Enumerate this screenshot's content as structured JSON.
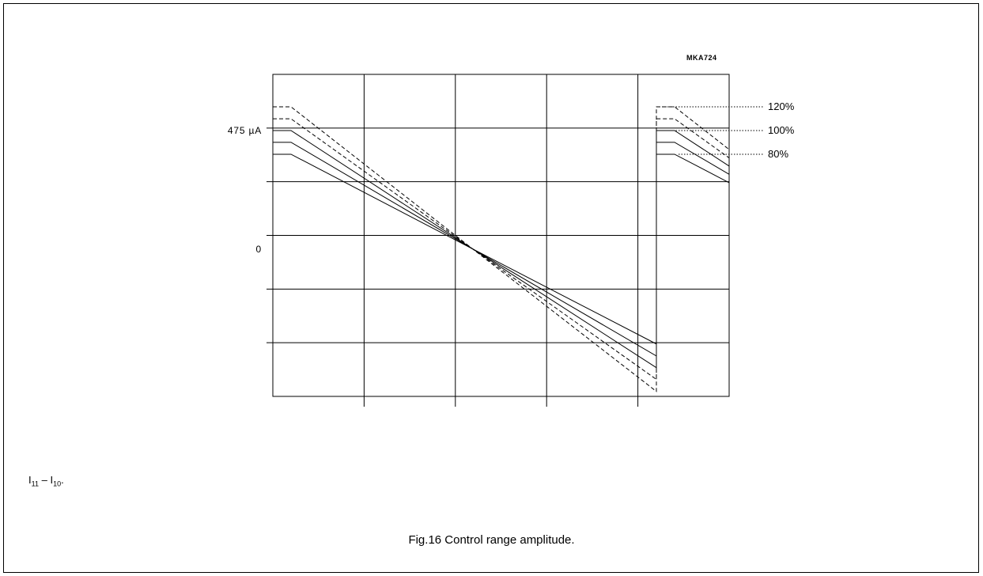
{
  "figure": {
    "code": "MKA724",
    "caption": "Fig.16  Control range amplitude.",
    "note": {
      "a": "I",
      "a_sub": "11",
      "sep": " – ",
      "b": "I",
      "b_sub": "10",
      "end": "."
    }
  },
  "chart_data": {
    "type": "line",
    "title": "",
    "xlabel": "",
    "ylabel": "",
    "x_divisions": 5,
    "y_divisions": 6,
    "yticks": [
      {
        "value": 475,
        "label": "475 µA"
      },
      {
        "value": 0,
        "label": "0"
      }
    ],
    "legend": [
      "120%",
      "100%",
      "80%"
    ],
    "ylim": [
      -590,
      700
    ],
    "grid": true,
    "series": [
      {
        "name": "120%",
        "dashed": true,
        "level": 570
      },
      {
        "name": "",
        "dashed": true,
        "level": 522
      },
      {
        "name": "100%",
        "dashed": false,
        "level": 475
      },
      {
        "name": "",
        "dashed": false,
        "level": 428
      },
      {
        "name": "80%",
        "dashed": false,
        "level": 380
      }
    ]
  }
}
